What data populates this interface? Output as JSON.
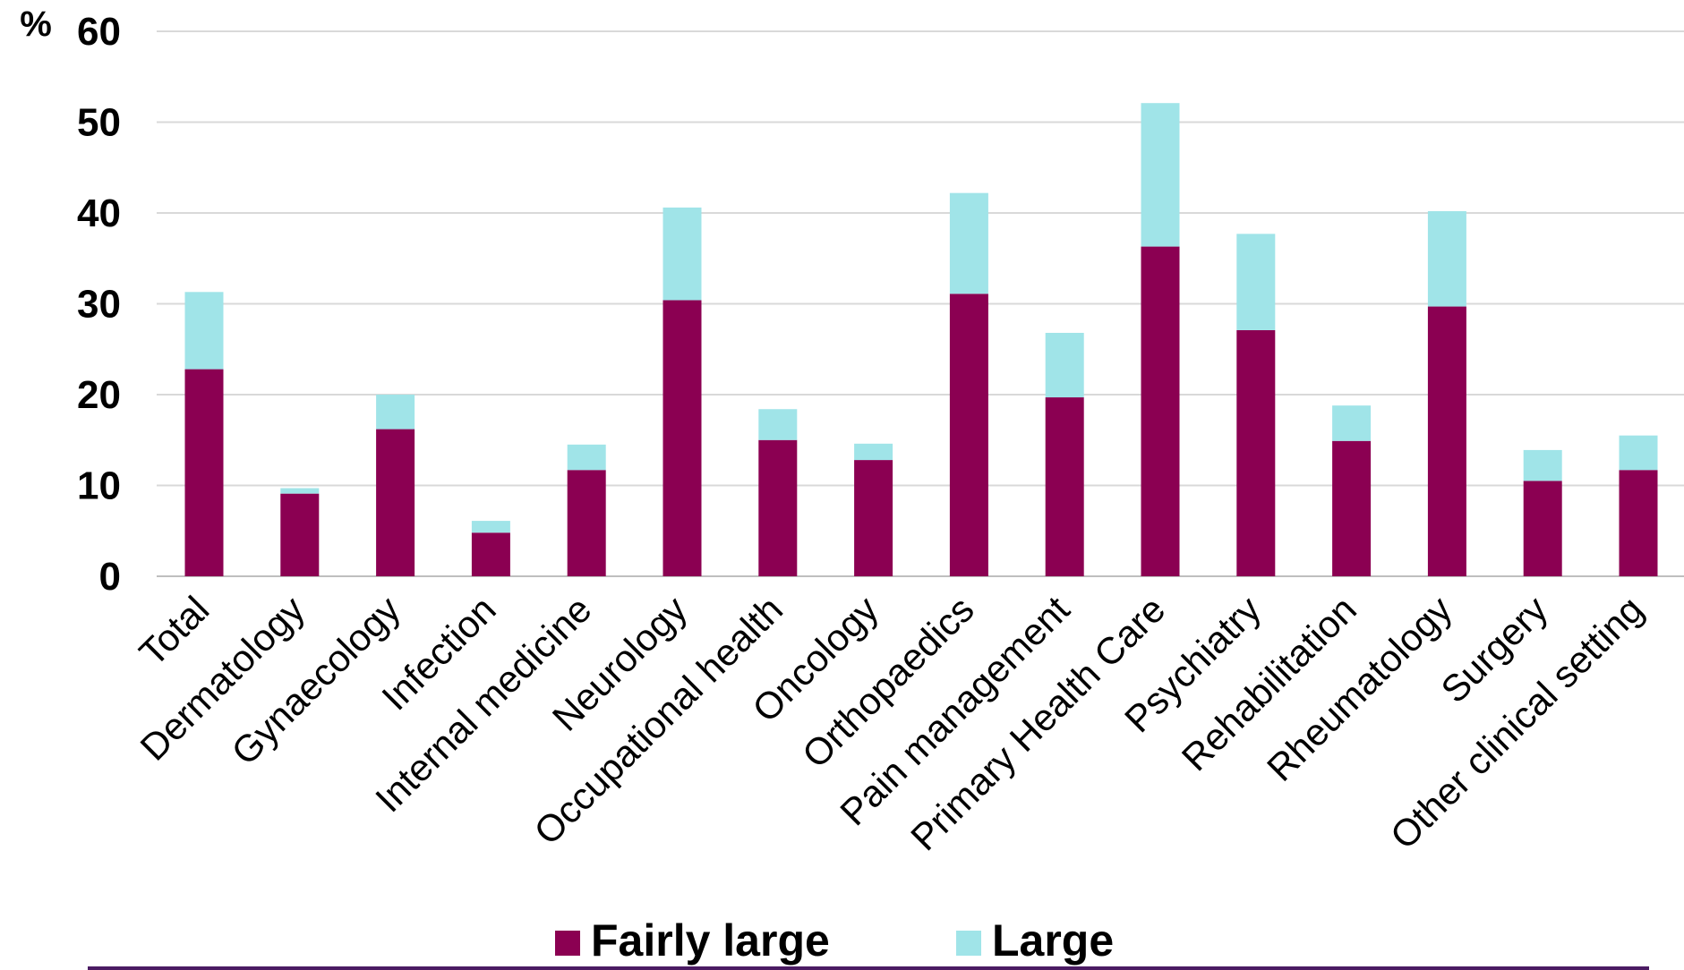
{
  "chart_data": {
    "type": "bar",
    "stacked": true,
    "title": "",
    "y_unit": "%",
    "ylim": [
      0,
      60
    ],
    "y_ticks": [
      0,
      10,
      20,
      30,
      40,
      50,
      60
    ],
    "grid": true,
    "legend_position": "bottom",
    "categories": [
      "Total",
      "Dermatology",
      "Gynaecology",
      "Infection",
      "Internal medicine",
      "Neurology",
      "Occupational health",
      "Oncology",
      "Orthopaedics",
      "Pain management",
      "Primary Health Care",
      "Psychiatry",
      "Rehabilitation",
      "Rheumatology",
      "Surgery",
      "Other clinical setting"
    ],
    "series": [
      {
        "name": "Fairly large",
        "color": "#8b0052",
        "values": [
          22.8,
          9.1,
          16.2,
          4.8,
          11.7,
          30.4,
          15.0,
          12.8,
          31.1,
          19.7,
          36.3,
          27.1,
          14.9,
          29.7,
          10.5,
          11.7
        ]
      },
      {
        "name": "Large",
        "color": "#a0e4e8",
        "values": [
          8.5,
          0.6,
          3.8,
          1.3,
          2.8,
          10.2,
          3.4,
          1.8,
          11.1,
          7.1,
          15.8,
          10.6,
          3.9,
          10.5,
          3.4,
          3.8
        ]
      }
    ]
  }
}
